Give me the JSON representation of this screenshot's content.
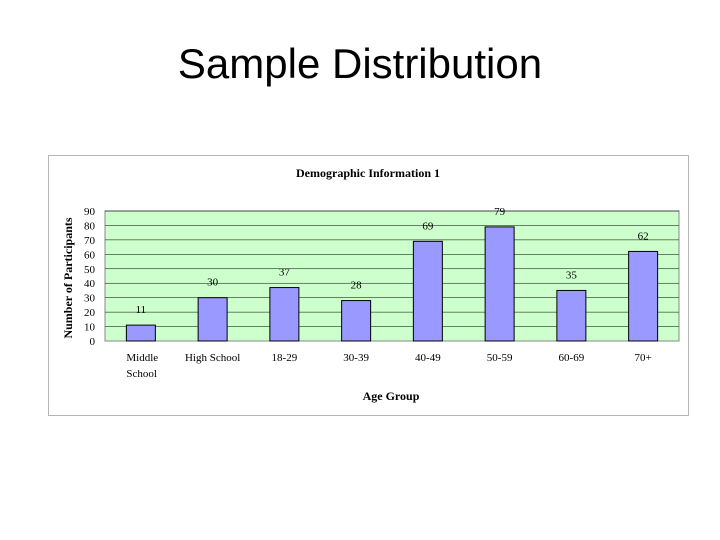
{
  "slide": {
    "title": "Sample Distribution"
  },
  "colors": {
    "plot_background": "#ccffcc",
    "bar_fill": "#9999ff",
    "bar_stroke": "#000000",
    "gridline": "#000000"
  },
  "chart_data": {
    "type": "bar",
    "title": "Demographic Information 1",
    "xlabel": "Age Group",
    "ylabel": "Number of Participants",
    "categories": [
      "Middle School",
      "High School",
      "18-29",
      "30-39",
      "40-49",
      "50-59",
      "60-69",
      "70+"
    ],
    "category_lines": [
      [
        "Middle",
        "School"
      ],
      [
        "High School"
      ],
      [
        "18-29"
      ],
      [
        "30-39"
      ],
      [
        "40-49"
      ],
      [
        "50-59"
      ],
      [
        "60-69"
      ],
      [
        "70+"
      ]
    ],
    "values": [
      11,
      30,
      37,
      28,
      69,
      79,
      35,
      62
    ],
    "data_labels": [
      "11",
      "30",
      "37",
      "28",
      "69",
      "79",
      "35",
      "62"
    ],
    "ylim": [
      0,
      90
    ],
    "yticks": [
      0,
      10,
      20,
      30,
      40,
      50,
      60,
      70,
      80,
      90
    ],
    "ytick_labels": [
      "0",
      "10",
      "20",
      "30",
      "40",
      "50",
      "60",
      "70",
      "80",
      "90"
    ],
    "grid": true,
    "legend": "none"
  }
}
